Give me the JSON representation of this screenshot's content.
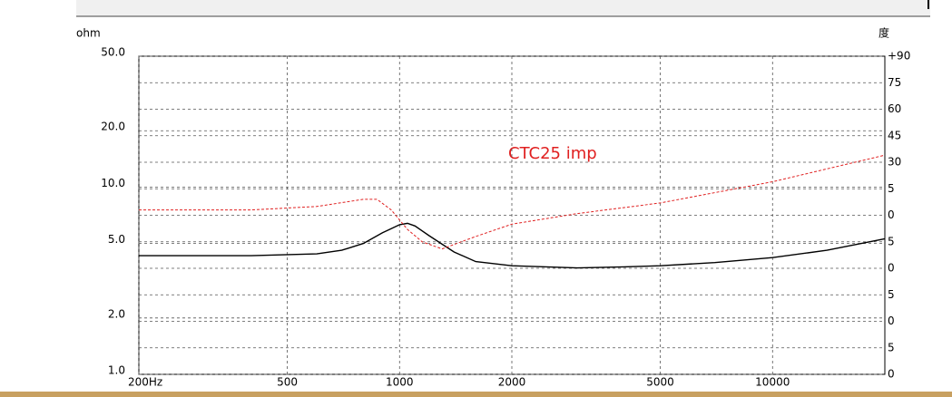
{
  "chart_data": {
    "type": "line",
    "ylabel": "ohm",
    "y2label": "度",
    "annotation": "CTC25 imp",
    "xscale": "log",
    "yscale": "log",
    "grid": true,
    "xlim": [
      200,
      20000
    ],
    "xticks": [
      {
        "value": 200,
        "label": "200Hz"
      },
      500,
      1000,
      2000,
      5000,
      10000
    ],
    "ylim": [
      1,
      50
    ],
    "yticks": [
      {
        "value": 1,
        "label": "1.0"
      },
      {
        "value": 2,
        "label": "2.0"
      },
      {
        "value": 5,
        "label": "5.0"
      },
      {
        "value": 10,
        "label": "10.0"
      },
      {
        "value": 20,
        "label": "20.0"
      },
      {
        "value": 50,
        "label": "50.0"
      }
    ],
    "y2lim": [
      -90,
      90
    ],
    "y2ticks": [
      {
        "value": 90,
        "label": "+90"
      },
      75,
      60,
      45,
      30,
      {
        "value": 15,
        "label": "5"
      },
      0,
      {
        "value": -15,
        "label": "5"
      },
      {
        "value": -30,
        "label": "0"
      },
      {
        "value": -45,
        "label": "5"
      },
      {
        "value": -60,
        "label": "0"
      },
      {
        "value": -75,
        "label": "5"
      },
      {
        "value": -90,
        "label": "0"
      }
    ],
    "series": [
      {
        "color": "#000000",
        "axis": "y",
        "dash": false,
        "x": [
          200,
          400,
          600,
          700,
          800,
          900,
          1000,
          1050,
          1100,
          1200,
          1400,
          1600,
          2000,
          3000,
          4000,
          5000,
          7000,
          10000,
          14000,
          20000
        ],
        "values": [
          4.3,
          4.3,
          4.4,
          4.6,
          5.0,
          5.7,
          6.3,
          6.4,
          6.2,
          5.5,
          4.5,
          4.0,
          3.8,
          3.7,
          3.75,
          3.8,
          3.95,
          4.2,
          4.6,
          5.3
        ]
      },
      {
        "color": "#e02020",
        "axis": "y2",
        "dash": true,
        "x": [
          200,
          400,
          600,
          800,
          870,
          950,
          1050,
          1150,
          1300,
          1600,
          2000,
          3000,
          5000,
          10000,
          20000
        ],
        "values": [
          3,
          3,
          5,
          9,
          9,
          3,
          -8,
          -15,
          -19,
          -12,
          -5,
          1,
          7,
          19,
          34
        ]
      }
    ]
  }
}
